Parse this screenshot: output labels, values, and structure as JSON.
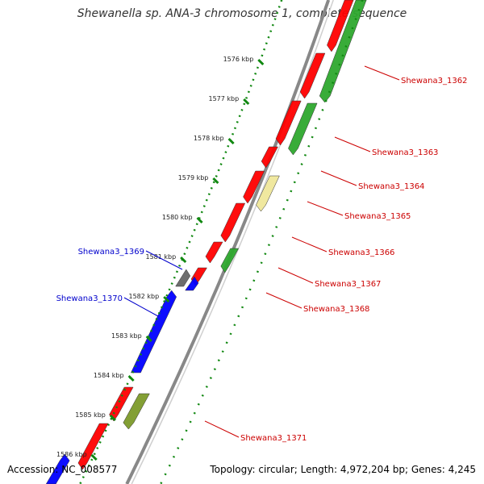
{
  "title": "Shewanella sp. ANA-3 chromosome 1, complete sequence",
  "footer": {
    "accession": "Accession: NC_008577",
    "summary": "Topology: circular; Length: 4,972,204 bp; Genes: 4,245"
  },
  "colors": {
    "backbone": "#888888",
    "forward_gene": "#ff0000",
    "reverse_gene": "#0000ff",
    "green_gene": "#2ea82e",
    "pale_gene": "#efe79a",
    "olive_gene": "#7c9a2a",
    "grey_gene": "#666666",
    "ruler": "#118811",
    "label_red": "#cc0000",
    "label_blue": "#0000cc"
  },
  "ruler_ticks": [
    {
      "label": "1576 kbp"
    },
    {
      "label": "1577 kbp"
    },
    {
      "label": "1578 kbp"
    },
    {
      "label": "1579 kbp"
    },
    {
      "label": "1580 kbp"
    },
    {
      "label": "1581 kbp"
    },
    {
      "label": "1582 kbp"
    },
    {
      "label": "1583 kbp"
    },
    {
      "label": "1584 kbp"
    },
    {
      "label": "1585 kbp"
    },
    {
      "label": "1586 kbp"
    }
  ],
  "gene_labels": [
    {
      "name": "Shewana3_1362",
      "color": "#cc0000"
    },
    {
      "name": "Shewana3_1363",
      "color": "#cc0000"
    },
    {
      "name": "Shewana3_1364",
      "color": "#cc0000"
    },
    {
      "name": "Shewana3_1365",
      "color": "#cc0000"
    },
    {
      "name": "Shewana3_1366",
      "color": "#cc0000"
    },
    {
      "name": "Shewana3_1367",
      "color": "#cc0000"
    },
    {
      "name": "Shewana3_1368",
      "color": "#cc0000"
    },
    {
      "name": "Shewana3_1369",
      "color": "#0000cc"
    },
    {
      "name": "Shewana3_1370",
      "color": "#0000cc"
    },
    {
      "name": "Shewana3_1371",
      "color": "#cc0000"
    }
  ]
}
